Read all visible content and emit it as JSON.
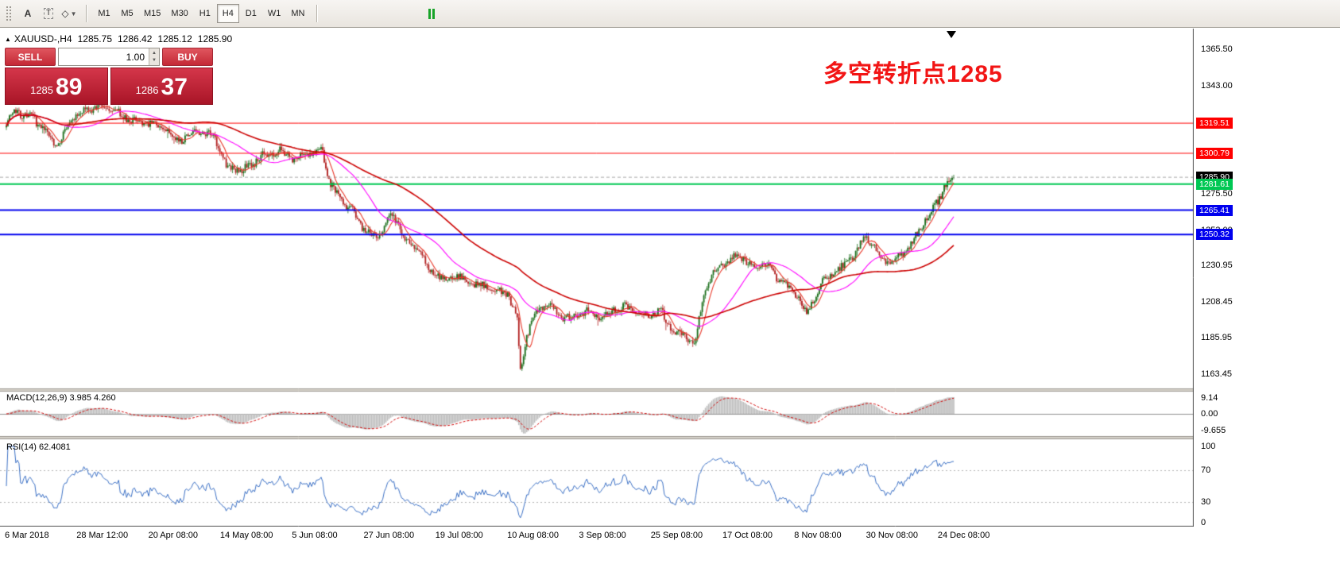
{
  "icons": {
    "collapse": "▲",
    "caret_down": "▼",
    "spinner_up": "▲",
    "spinner_down": "▼"
  },
  "toolbar": {
    "tools": [
      {
        "name": "font-tool",
        "glyph": "A"
      },
      {
        "name": "text-label-tool",
        "glyph": "T"
      },
      {
        "name": "shapes-dropdown",
        "glyph": "◇",
        "caret": "▼"
      }
    ],
    "timeframes": [
      {
        "label": "M1",
        "active": false
      },
      {
        "label": "M5",
        "active": false
      },
      {
        "label": "M15",
        "active": false
      },
      {
        "label": "M30",
        "active": false
      },
      {
        "label": "H1",
        "active": false
      },
      {
        "label": "H4",
        "active": true
      },
      {
        "label": "D1",
        "active": false
      },
      {
        "label": "W1",
        "active": false
      },
      {
        "label": "MN",
        "active": false
      }
    ]
  },
  "chart": {
    "title": "XAUUSD-,H4",
    "ohlc": {
      "open": "1285.75",
      "high": "1286.42",
      "low": "1285.12",
      "close": "1285.90"
    },
    "annotation": {
      "text": "多空转折点1285",
      "color": "#f21515"
    }
  },
  "trade_panel": {
    "sell_label": "SELL",
    "buy_label": "BUY",
    "volume": "1.00",
    "bid": {
      "main": "1285",
      "big": "89"
    },
    "ask": {
      "main": "1286",
      "big": "37"
    }
  },
  "price_axis": {
    "ticks": [
      {
        "label": "1365.50",
        "value": 1365.5
      },
      {
        "label": "1343.00",
        "value": 1343.0
      },
      {
        "label": "1275.50",
        "value": 1275.5
      },
      {
        "label": "1253.00",
        "value": 1253.0
      },
      {
        "label": "1230.95",
        "value": 1230.95
      },
      {
        "label": "1208.45",
        "value": 1208.45
      },
      {
        "label": "1185.95",
        "value": 1185.95
      },
      {
        "label": "1163.45",
        "value": 1163.45
      }
    ],
    "badges": [
      {
        "label": "1319.51",
        "value": 1319.51,
        "bg": "#ff0000",
        "fg": "#ffffff"
      },
      {
        "label": "1300.79",
        "value": 1300.79,
        "bg": "#ff0000",
        "fg": "#ffffff"
      },
      {
        "label": "1285.90",
        "value": 1285.9,
        "bg": "#000000",
        "fg": "#ffffff"
      },
      {
        "label": "1281.61",
        "value": 1281.61,
        "bg": "#00c853",
        "fg": "#ffffff"
      },
      {
        "label": "1265.41",
        "value": 1265.41,
        "bg": "#0000ee",
        "fg": "#ffffff"
      },
      {
        "label": "1250.32",
        "value": 1250.32,
        "bg": "#0000ee",
        "fg": "#ffffff"
      }
    ]
  },
  "indicators": {
    "macd": {
      "label": "MACD(12,26,9) 3.985 4.260",
      "ticks": [
        {
          "label": "9.14",
          "value": 9.14
        },
        {
          "label": "0.00",
          "value": 0
        },
        {
          "label": "-9.655",
          "value": -9.655
        }
      ]
    },
    "rsi": {
      "label": "RSI(14) 62.4081",
      "ticks": [
        {
          "label": "100",
          "value": 100
        },
        {
          "label": "70",
          "value": 70
        },
        {
          "label": "30",
          "value": 30
        },
        {
          "label": "0",
          "value": 0
        }
      ]
    }
  },
  "time_axis": [
    "6 Mar 2018",
    "28 Mar 12:00",
    "20 Apr 08:00",
    "14 May 08:00",
    "5 Jun 08:00",
    "27 Jun 08:00",
    "19 Jul 08:00",
    "10 Aug 08:00",
    "3 Sep 08:00",
    "25 Sep 08:00",
    "17 Oct 08:00",
    "8 Nov 08:00",
    "30 Nov 08:00",
    "24 Dec 08:00"
  ],
  "chart_data": {
    "type": "candlestick",
    "symbol": "XAUUSD-",
    "period": "H4",
    "visible_price_range": [
      1163.45,
      1365.5
    ],
    "current": {
      "open": 1285.75,
      "high": 1286.42,
      "low": 1285.12,
      "close": 1285.9,
      "bid": 1285.89,
      "ask": 1286.37
    },
    "horizontal_levels": [
      {
        "price": 1319.51,
        "color": "#ff0000",
        "width": 1
      },
      {
        "price": 1300.79,
        "color": "#ff0000",
        "width": 1
      },
      {
        "price": 1281.61,
        "color": "#00c853",
        "width": 2
      },
      {
        "price": 1265.41,
        "color": "#0000ee",
        "width": 2
      },
      {
        "price": 1250.32,
        "color": "#0000ee",
        "width": 2
      }
    ],
    "price_path": [
      [
        0.0,
        1320
      ],
      [
        0.01,
        1327
      ],
      [
        0.03,
        1322
      ],
      [
        0.052,
        1305
      ],
      [
        0.073,
        1324
      ],
      [
        0.102,
        1331
      ],
      [
        0.128,
        1322
      ],
      [
        0.161,
        1318
      ],
      [
        0.182,
        1309
      ],
      [
        0.203,
        1314
      ],
      [
        0.22,
        1311
      ],
      [
        0.232,
        1293
      ],
      [
        0.249,
        1290
      ],
      [
        0.27,
        1299
      ],
      [
        0.287,
        1303
      ],
      [
        0.304,
        1297
      ],
      [
        0.325,
        1301
      ],
      [
        0.333,
        1304
      ],
      [
        0.341,
        1283
      ],
      [
        0.354,
        1271
      ],
      [
        0.367,
        1264
      ],
      [
        0.379,
        1252
      ],
      [
        0.392,
        1249
      ],
      [
        0.404,
        1261
      ],
      [
        0.413,
        1259
      ],
      [
        0.421,
        1247
      ],
      [
        0.434,
        1243
      ],
      [
        0.446,
        1228
      ],
      [
        0.463,
        1222
      ],
      [
        0.476,
        1225
      ],
      [
        0.488,
        1220
      ],
      [
        0.505,
        1218
      ],
      [
        0.518,
        1215
      ],
      [
        0.53,
        1213
      ],
      [
        0.539,
        1198
      ],
      [
        0.543,
        1165
      ],
      [
        0.549,
        1188
      ],
      [
        0.56,
        1203
      ],
      [
        0.572,
        1208
      ],
      [
        0.585,
        1200
      ],
      [
        0.597,
        1198
      ],
      [
        0.614,
        1203
      ],
      [
        0.631,
        1198
      ],
      [
        0.644,
        1205
      ],
      [
        0.66,
        1205
      ],
      [
        0.677,
        1200
      ],
      [
        0.69,
        1203
      ],
      [
        0.702,
        1191
      ],
      [
        0.715,
        1188
      ],
      [
        0.727,
        1183
      ],
      [
        0.736,
        1213
      ],
      [
        0.748,
        1228
      ],
      [
        0.761,
        1233
      ],
      [
        0.773,
        1239
      ],
      [
        0.786,
        1230
      ],
      [
        0.799,
        1233
      ],
      [
        0.811,
        1225
      ],
      [
        0.824,
        1218
      ],
      [
        0.837,
        1210
      ],
      [
        0.845,
        1201
      ],
      [
        0.858,
        1218
      ],
      [
        0.87,
        1225
      ],
      [
        0.883,
        1230
      ],
      [
        0.895,
        1238
      ],
      [
        0.908,
        1250
      ],
      [
        0.92,
        1238
      ],
      [
        0.933,
        1233
      ],
      [
        0.946,
        1238
      ],
      [
        0.958,
        1247
      ],
      [
        0.971,
        1260
      ],
      [
        0.983,
        1271
      ],
      [
        0.993,
        1283
      ],
      [
        1.0,
        1285.9
      ]
    ],
    "moving_averages": [
      {
        "period": 8,
        "color": "#e8392a"
      },
      {
        "period": 34,
        "color": "#ff00ff"
      },
      {
        "period": 90,
        "color": "#cc0000"
      }
    ],
    "macd": {
      "fast": 12,
      "slow": 26,
      "signal": 9,
      "current": 3.985,
      "current_signal": 4.26,
      "hist_color": "#bcbcbc",
      "signal_color": "#d00000"
    },
    "rsi": {
      "period": 14,
      "current": 62.4081,
      "color": "#3a6fc4",
      "levels": [
        70,
        30
      ]
    },
    "colors": {
      "up": "#1b6e1b",
      "down": "#b22222",
      "current_price_line": "#a8a8a8"
    }
  }
}
